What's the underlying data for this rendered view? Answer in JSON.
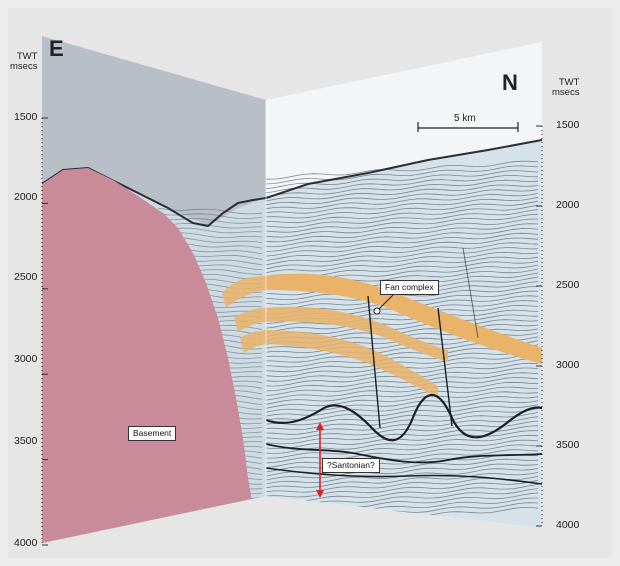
{
  "panels": {
    "left": {
      "direction_label": "E"
    },
    "right": {
      "direction_label": "N"
    }
  },
  "axis": {
    "title_line1": "TWT",
    "title_line2": "msecs",
    "left_ticks": [
      "1500",
      "2000",
      "2500",
      "3000",
      "3500",
      "4000"
    ],
    "right_ticks": [
      "1500",
      "2000",
      "2500",
      "3000",
      "3500",
      "4000"
    ]
  },
  "scale_bar": {
    "label": "5 km"
  },
  "annotations": {
    "fan_complex": "Fan complex",
    "basement": "Basement",
    "santonian": "?Santonian?"
  },
  "colors": {
    "background": "#e6e6e6",
    "left_sky": "#b9bfc7",
    "basement_fill": "#c98a9a",
    "fan_fill": "#e9b36a",
    "seismic_base": "#d5e2ea",
    "red_arrow": "#d8232a"
  }
}
